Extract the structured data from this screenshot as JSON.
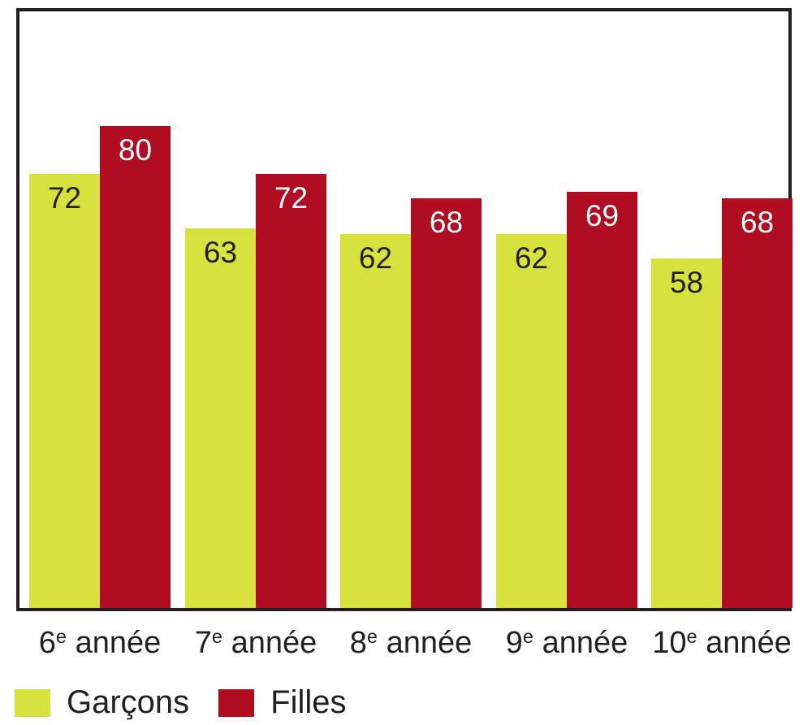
{
  "chart_data": {
    "type": "bar",
    "title": "",
    "xlabel": "",
    "ylabel": "",
    "ylim": [
      0,
      100
    ],
    "grid": false,
    "legend_position": "bottom-left",
    "categories": [
      {
        "grade": "6",
        "sup": "e",
        "word": "année",
        "full": "6e année"
      },
      {
        "grade": "7",
        "sup": "e",
        "word": "année",
        "full": "7e année"
      },
      {
        "grade": "8",
        "sup": "e",
        "word": "année",
        "full": "8e année"
      },
      {
        "grade": "9",
        "sup": "e",
        "word": "année",
        "full": "9e année"
      },
      {
        "grade": "10",
        "sup": "e",
        "word": "année",
        "full": "10e année"
      }
    ],
    "series": [
      {
        "name": "Garçons",
        "key": "garcons",
        "color": "#d7e23e",
        "label_color": "#231f20",
        "values": [
          72,
          63,
          62,
          62,
          58
        ]
      },
      {
        "name": "Filles",
        "key": "filles",
        "color": "#b10d22",
        "label_color": "#ffffff",
        "values": [
          80,
          72,
          68,
          69,
          68
        ]
      }
    ]
  },
  "colors": {
    "border": "#231f20",
    "text": "#231f20",
    "background": "#ffffff"
  }
}
